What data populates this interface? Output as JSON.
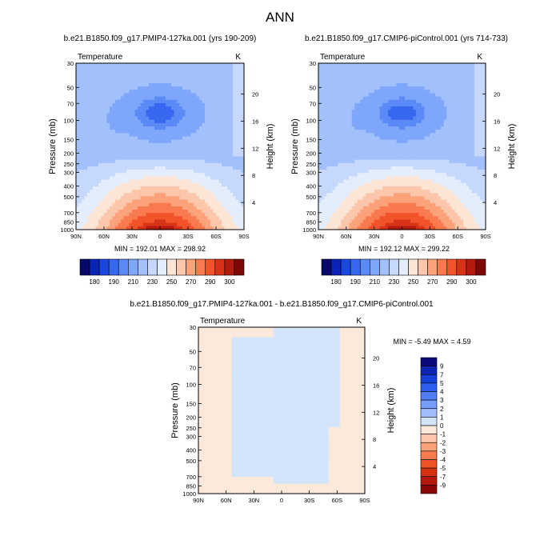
{
  "page": {
    "title": "ANN"
  },
  "colors": {
    "panel_scale": [
      "#08086b",
      "#0b24b8",
      "#1a48de",
      "#3768ef",
      "#5b8af7",
      "#7ea6fa",
      "#a2c0fb",
      "#c6d9fc",
      "#e3edfb",
      "#fde5d6",
      "#fcc6aa",
      "#fba27b",
      "#f87a4e",
      "#f1532b",
      "#d83318",
      "#b31b0e",
      "#7e0806"
    ],
    "diff_scale": [
      "#0a0a7e",
      "#0d25b4",
      "#1540da",
      "#2e5ef0",
      "#4f7df8",
      "#779cfa",
      "#a1bcfb",
      "#d3e5fb",
      "#fde9da",
      "#fcc7aa",
      "#fba27b",
      "#f77b4e",
      "#ec5428",
      "#d63112",
      "#b5190b",
      "#8a0906"
    ]
  },
  "chart_data": [
    {
      "type": "heatmap",
      "title": "b.e21.B1850.f09_g17.PMIP4-127ka.001 (yrs 190-209)",
      "variable": "Temperature",
      "units": "K",
      "xlabel": "",
      "ylabel": "Pressure (mb)",
      "y2label": "Height (km)",
      "x_ticks": [
        "90N",
        "60N",
        "30N",
        "0",
        "30S",
        "60S",
        "90S"
      ],
      "y_ticks": [
        "30",
        "50",
        "70",
        "100",
        "150",
        "200",
        "250",
        "300",
        "400",
        "500",
        "700",
        "850",
        "1000"
      ],
      "y2_ticks": [
        "20",
        "16",
        "12",
        "8",
        "4"
      ],
      "ylim": [
        1000,
        30
      ],
      "y_scale": "log",
      "stats": {
        "min": "192.01",
        "max": "298.92"
      },
      "min_label": "MIN = 192.01   MAX = 298.92",
      "colorbar_labels": [
        "180",
        "190",
        "210",
        "230",
        "250",
        "270",
        "290",
        "300"
      ]
    },
    {
      "type": "heatmap",
      "title": "b.e21.B1850.f09_g17.CMIP6-piControl.001 (yrs 714-733)",
      "variable": "Temperature",
      "units": "K",
      "xlabel": "",
      "ylabel": "Pressure (mb)",
      "y2label": "Height (km)",
      "x_ticks": [
        "90N",
        "60N",
        "30N",
        "0",
        "30S",
        "60S",
        "90S"
      ],
      "y_ticks": [
        "30",
        "50",
        "70",
        "100",
        "150",
        "200",
        "250",
        "300",
        "400",
        "500",
        "700",
        "850",
        "1000"
      ],
      "y2_ticks": [
        "20",
        "16",
        "12",
        "8",
        "4"
      ],
      "ylim": [
        1000,
        30
      ],
      "y_scale": "log",
      "stats": {
        "min": "192.12",
        "max": "299.22"
      },
      "min_label": "MIN = 192.12   MAX = 299.22",
      "colorbar_labels": [
        "180",
        "190",
        "210",
        "230",
        "250",
        "270",
        "290",
        "300"
      ]
    },
    {
      "type": "heatmap",
      "title": "b.e21.B1850.f09_g17.PMIP4-127ka.001 - b.e21.B1850.f09_g17.CMIP6-piControl.001",
      "variable": "Temperature",
      "units": "K",
      "xlabel": "",
      "ylabel": "Pressure (mb)",
      "y2label": "Height (km)",
      "x_ticks": [
        "90N",
        "60N",
        "30N",
        "0",
        "30S",
        "60S",
        "90S"
      ],
      "y_ticks": [
        "30",
        "50",
        "70",
        "100",
        "150",
        "200",
        "250",
        "300",
        "400",
        "500",
        "700",
        "850",
        "1000"
      ],
      "y2_ticks": [
        "20",
        "16",
        "12",
        "8",
        "4"
      ],
      "ylim": [
        1000,
        30
      ],
      "y_scale": "log",
      "stats": {
        "min": "-5.49",
        "max": "4.59"
      },
      "min_label": "MIN =  -5.49  MAX =   4.59",
      "colorbar_labels": [
        "9",
        "7",
        "5",
        "4",
        "3",
        "2",
        "1",
        "0",
        "-1",
        "-2",
        "-3",
        "-4",
        "-5",
        "-7",
        "-9"
      ]
    }
  ]
}
